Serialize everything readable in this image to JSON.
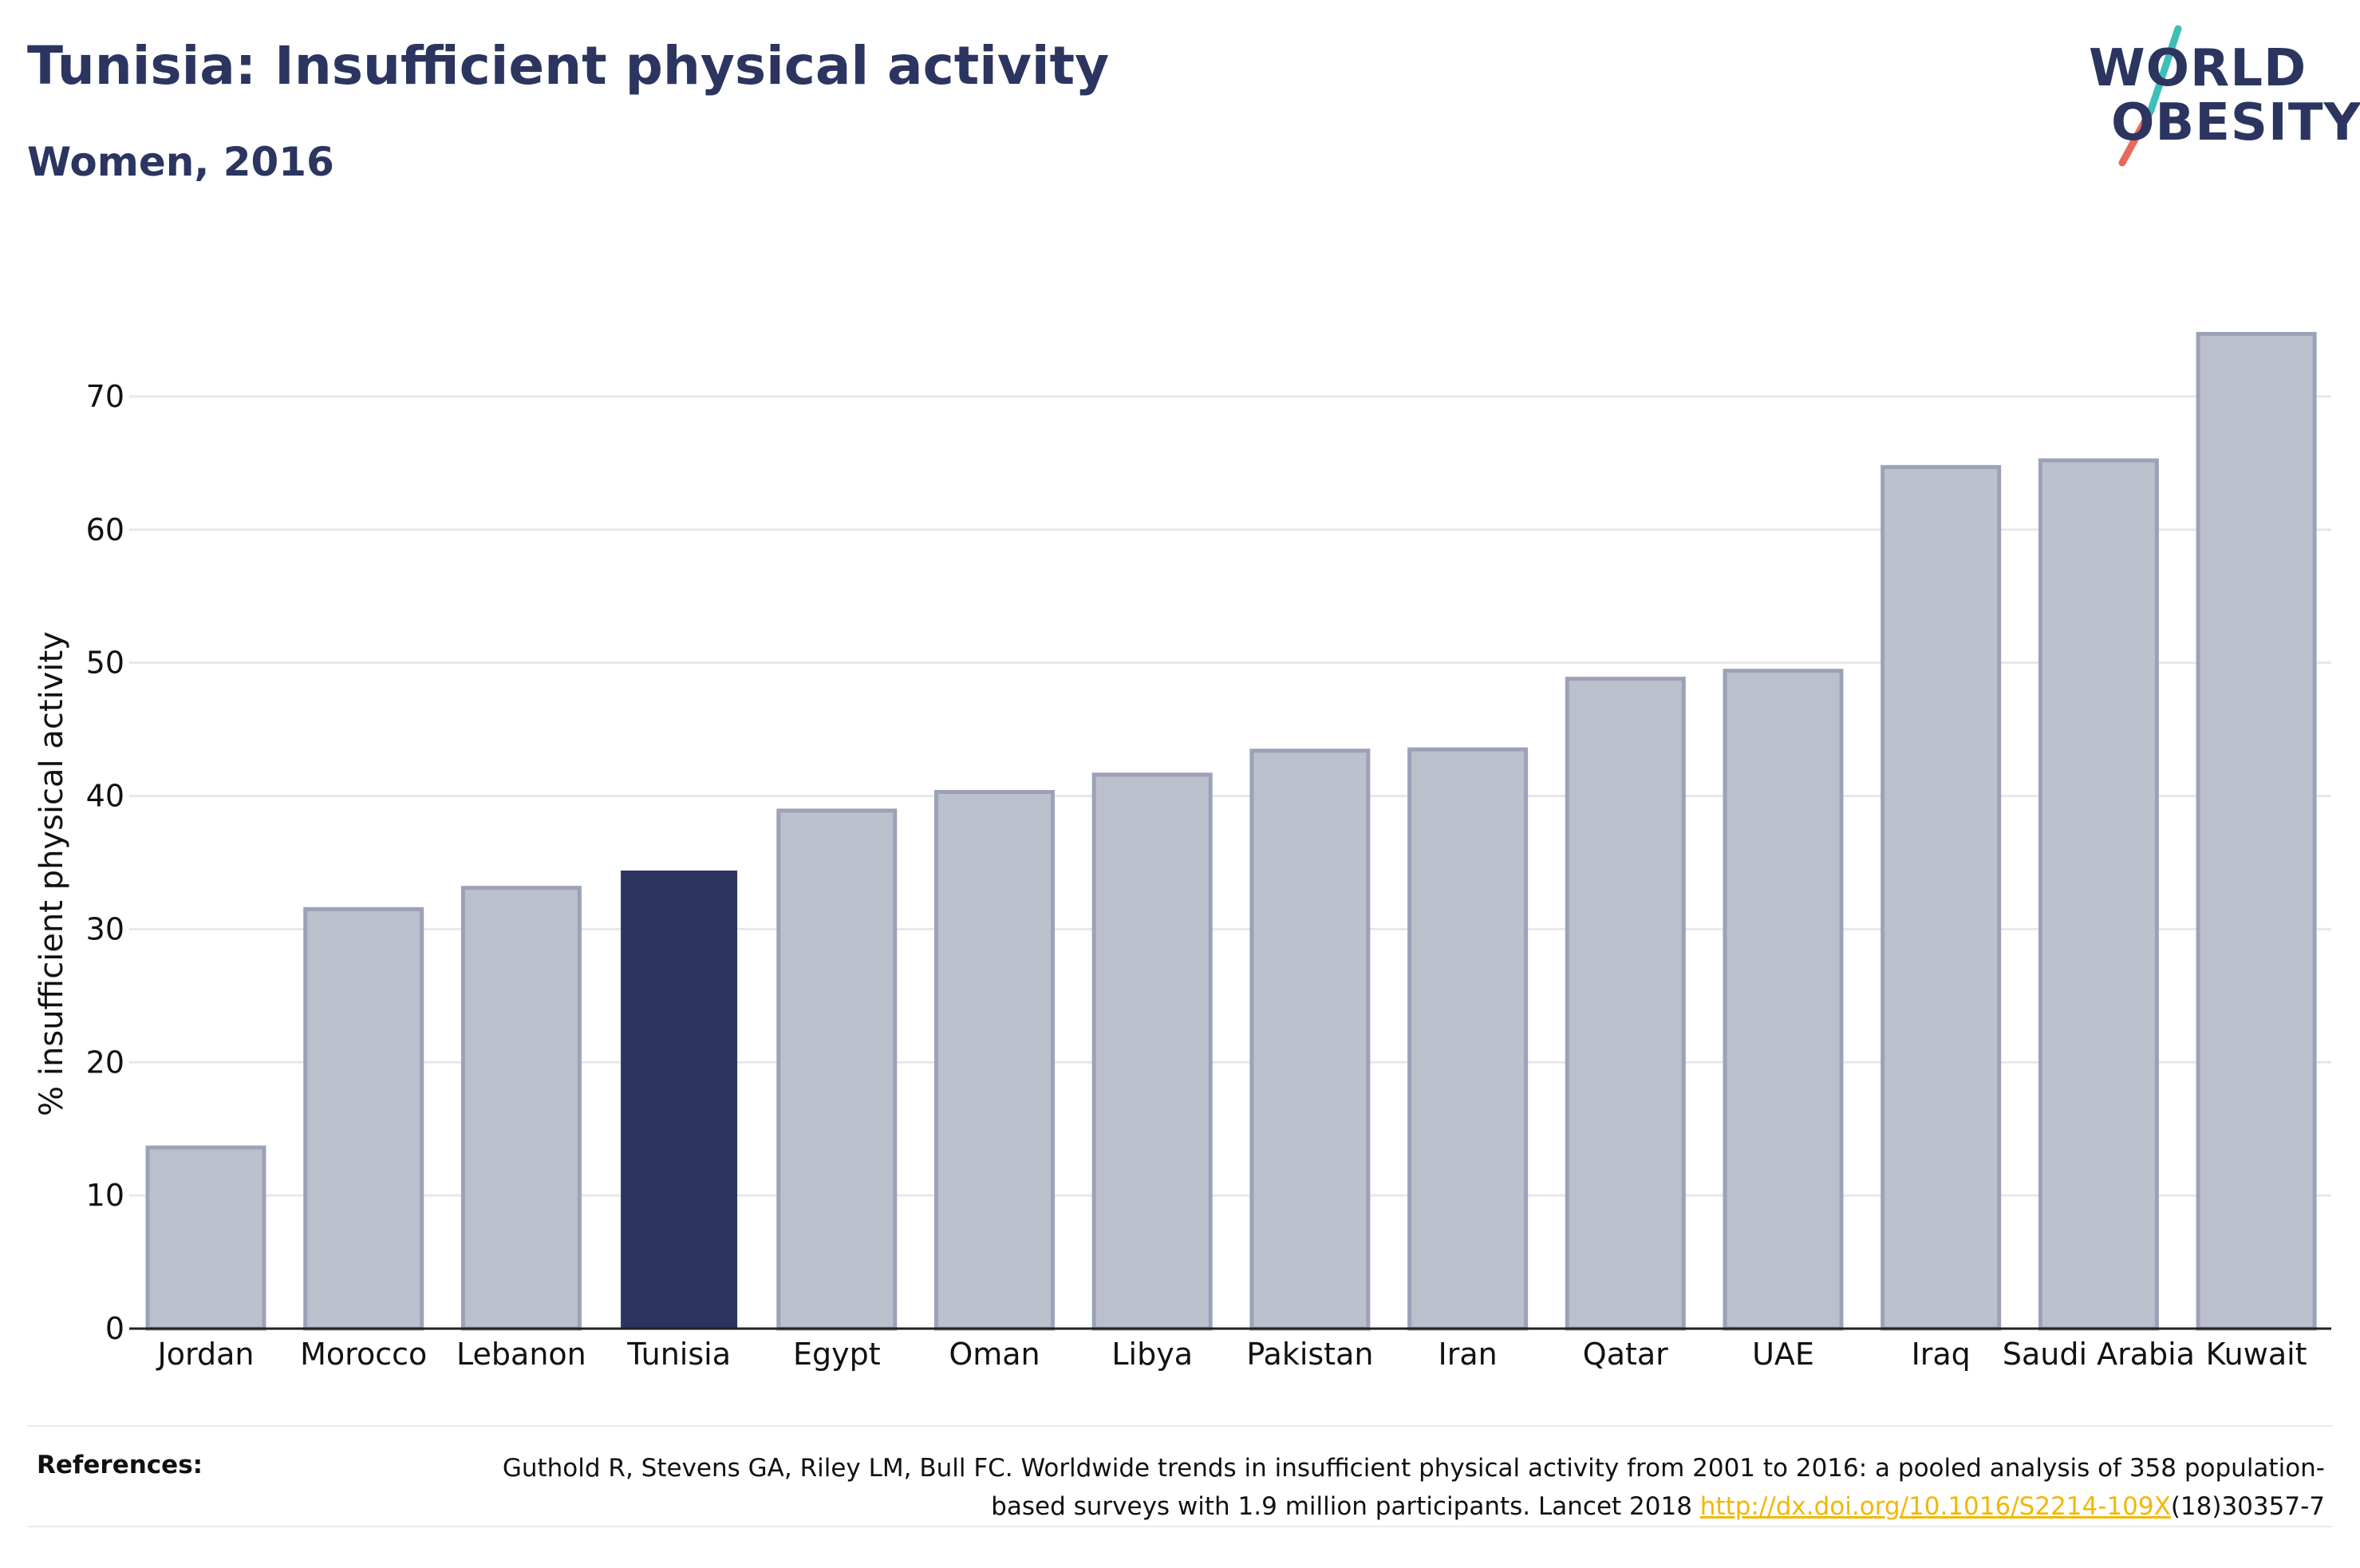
{
  "title": "Tunisia: Insufficient physical activity",
  "subtitle": "Women, 2016",
  "logo": {
    "line1": "WORLD",
    "line2": "OBESITY",
    "colors": {
      "text": "#2b3560",
      "slash_top": "#3dbfb8",
      "slash_bottom": "#e8695a"
    }
  },
  "chart_data": {
    "type": "bar",
    "categories": [
      "Jordan",
      "Morocco",
      "Lebanon",
      "Tunisia",
      "Egypt",
      "Oman",
      "Libya",
      "Pakistan",
      "Iran",
      "Qatar",
      "UAE",
      "Iraq",
      "Saudi Arabia",
      "Kuwait"
    ],
    "values": [
      13.6,
      31.5,
      33.1,
      34.4,
      38.9,
      40.3,
      41.6,
      43.4,
      43.5,
      48.8,
      49.4,
      64.7,
      65.2,
      74.7
    ],
    "highlight": "Tunisia",
    "ylabel": "% insufficient physical activity",
    "xlabel": "",
    "ylim": [
      0,
      80
    ],
    "yticks": [
      0,
      10,
      20,
      30,
      40,
      50,
      60,
      70
    ],
    "grid": true,
    "colors": {
      "bar": "#bcc0cc",
      "bar_edge": "#9ba2b8",
      "highlight": "#2b3560",
      "grid": "#e8e8e8",
      "axis": "#222222"
    }
  },
  "references": {
    "label": "References:",
    "text_before": "Guthold R, Stevens GA, Riley LM, Bull FC. Worldwide trends in insufficient physical activity from 2001 to 2016: a pooled analysis of 358 population-based surveys with 1.9 million participants. Lancet 2018 ",
    "link": "http://dx.doi.org/10.1016/S2214-109X",
    "text_after": "(18)30357-7"
  }
}
